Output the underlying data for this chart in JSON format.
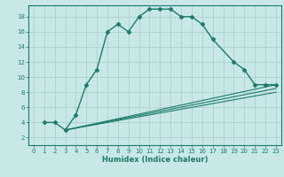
{
  "xlabel": "Humidex (Indice chaleur)",
  "background_color": "#c8e8e8",
  "grid_color": "#b0d0d0",
  "line_color": "#1a7a6a",
  "xlim": [
    -0.5,
    23.5
  ],
  "ylim": [
    1,
    19.5
  ],
  "xticks": [
    0,
    1,
    2,
    3,
    4,
    5,
    6,
    7,
    8,
    9,
    10,
    11,
    12,
    13,
    14,
    15,
    16,
    17,
    18,
    19,
    20,
    21,
    22,
    23
  ],
  "yticks": [
    2,
    4,
    6,
    8,
    10,
    12,
    14,
    16,
    18
  ],
  "series": [
    {
      "x": [
        1,
        2,
        3,
        4,
        5,
        6,
        7,
        8,
        9,
        10,
        11,
        12,
        13,
        14,
        15,
        16,
        17,
        19,
        20,
        21,
        22,
        23
      ],
      "y": [
        4,
        4,
        3,
        5,
        9,
        11,
        16,
        17,
        16,
        18,
        19,
        19,
        19,
        18,
        18,
        17,
        15,
        12,
        11,
        9,
        9,
        9
      ],
      "marker": "D",
      "markersize": 2.5,
      "linestyle": "-",
      "linewidth": 1.0
    },
    {
      "x": [
        3,
        23
      ],
      "y": [
        3,
        8
      ],
      "marker": null,
      "linestyle": "-",
      "linewidth": 0.8
    },
    {
      "x": [
        3,
        23
      ],
      "y": [
        3,
        9
      ],
      "marker": null,
      "linestyle": "-",
      "linewidth": 0.8
    },
    {
      "x": [
        3,
        23
      ],
      "y": [
        3,
        8.5
      ],
      "marker": null,
      "linestyle": "-",
      "linewidth": 0.8
    }
  ]
}
